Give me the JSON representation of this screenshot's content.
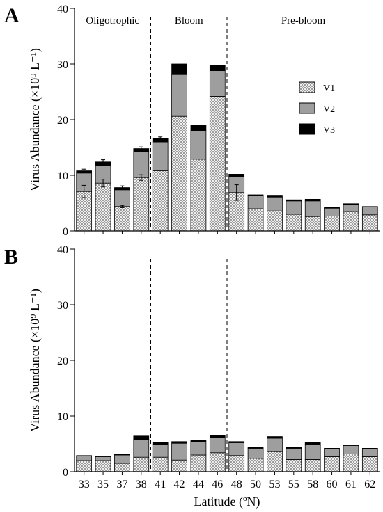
{
  "figure": {
    "xlabel": "Latitude (ºN)",
    "ylabel": "Virus Abundance (×10⁹ L⁻¹)"
  },
  "legend": [
    {
      "label": "V1",
      "color": "#ffffff",
      "pattern": "crosshatch"
    },
    {
      "label": "V2",
      "color": "#9e9e9e"
    },
    {
      "label": "V3",
      "color": "#000000"
    }
  ],
  "colors": {
    "v1": "#ffffff",
    "v2": "#9e9e9e",
    "v3": "#000000",
    "axis": "#000000"
  },
  "chart_data": [
    {
      "type": "bar",
      "stacked": true,
      "panel": "A",
      "title": "",
      "xlabel": "Latitude (ºN)",
      "ylabel": "Virus Abundance (×10⁹ L⁻¹)",
      "ylim": [
        0,
        40
      ],
      "yticks": [
        0,
        10,
        20,
        30,
        40
      ],
      "grid": false,
      "legend_position": "right, beside Bloom region",
      "categories": [
        "33",
        "35",
        "37",
        "38",
        "41",
        "42",
        "44",
        "46",
        "48",
        "50",
        "53",
        "55",
        "58",
        "60",
        "61",
        "62"
      ],
      "series": [
        {
          "name": "V1",
          "values": [
            7.1,
            8.6,
            4.4,
            9.6,
            10.8,
            20.6,
            12.9,
            24.2,
            6.9,
            4.0,
            3.6,
            3.0,
            2.6,
            2.7,
            3.5,
            2.9
          ]
        },
        {
          "name": "V2",
          "values": [
            3.3,
            3.1,
            3.0,
            4.6,
            5.2,
            7.5,
            5.1,
            4.6,
            2.9,
            2.3,
            2.5,
            2.4,
            2.8,
            1.4,
            1.3,
            1.4
          ]
        },
        {
          "name": "V3",
          "values": [
            0.4,
            0.7,
            0.4,
            0.6,
            0.6,
            1.9,
            1.0,
            1.0,
            0.4,
            0.2,
            0.2,
            0.2,
            0.3,
            0.1,
            0.1,
            0.1
          ]
        }
      ],
      "error_bars": [
        {
          "index": 0,
          "series": "V1",
          "value": 1.1
        },
        {
          "index": 1,
          "series": "V1",
          "value": 0.7
        },
        {
          "index": 2,
          "series": "V1",
          "value": 0.2
        },
        {
          "index": 3,
          "series": "V1",
          "value": 0.5
        },
        {
          "index": 8,
          "series": "V1",
          "value": 1.4
        },
        {
          "index": 0,
          "series": "V3",
          "value": 0.3
        },
        {
          "index": 1,
          "series": "V3",
          "value": 0.4
        },
        {
          "index": 2,
          "series": "V3",
          "value": 0.3
        },
        {
          "index": 3,
          "series": "V3",
          "value": 0.3
        },
        {
          "index": 4,
          "series": "V3",
          "value": 0.3
        }
      ],
      "regions": [
        {
          "label": "Oligotrophic",
          "from": 0,
          "to": 3
        },
        {
          "label": "Bloom",
          "from": 4,
          "to": 7
        },
        {
          "label": "Pre-bloom",
          "from": 8,
          "to": 15
        }
      ]
    },
    {
      "type": "bar",
      "stacked": true,
      "panel": "B",
      "title": "",
      "xlabel": "Latitude (ºN)",
      "ylabel": "Virus Abundance (×10⁹ L⁻¹)",
      "ylim": [
        0,
        40
      ],
      "yticks": [
        0,
        10,
        20,
        30,
        40
      ],
      "grid": false,
      "categories": [
        "33",
        "35",
        "37",
        "38",
        "41",
        "42",
        "44",
        "46",
        "48",
        "50",
        "53",
        "55",
        "58",
        "60",
        "61",
        "62"
      ],
      "series": [
        {
          "name": "V1",
          "values": [
            2.0,
            2.0,
            1.5,
            2.6,
            2.6,
            2.1,
            3.0,
            3.4,
            2.9,
            2.4,
            3.6,
            2.2,
            2.2,
            2.7,
            3.2,
            2.7
          ]
        },
        {
          "name": "V2",
          "values": [
            0.8,
            0.7,
            1.5,
            3.2,
            2.3,
            3.0,
            2.3,
            2.7,
            2.3,
            1.8,
            2.4,
            2.0,
            2.7,
            1.4,
            1.5,
            1.4
          ]
        },
        {
          "name": "V3",
          "values": [
            0.1,
            0.1,
            0.1,
            0.6,
            0.3,
            0.3,
            0.3,
            0.4,
            0.2,
            0.2,
            0.3,
            0.2,
            0.3,
            0.1,
            0.1,
            0.1
          ]
        }
      ],
      "error_bars": [],
      "regions": [
        {
          "label": "",
          "from": 0,
          "to": 3
        },
        {
          "label": "",
          "from": 4,
          "to": 7
        },
        {
          "label": "",
          "from": 8,
          "to": 15
        }
      ]
    }
  ]
}
